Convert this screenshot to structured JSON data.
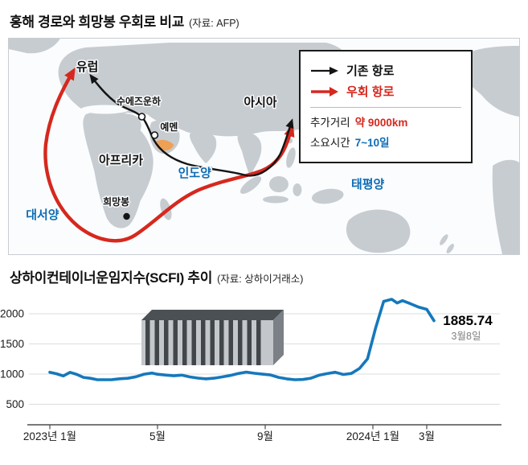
{
  "page": {
    "title": "홍해 경로와 희망봉 우회로 비교",
    "source": "(자료: AFP)"
  },
  "map": {
    "labels": {
      "europe": "유럽",
      "suez_canal": "수에즈운하",
      "asia": "아시아",
      "yemen": "예멘",
      "africa": "아프리카",
      "indian_ocean": "인도양",
      "pacific_ocean": "태평양",
      "atlantic_ocean": "대서양",
      "cape_of_good_hope": "희망봉"
    },
    "legend": {
      "existing_route_label": "기존 항로",
      "detour_route_label": "우회 항로",
      "extra_distance_label": "추가거리",
      "extra_distance_value": "약 9000km",
      "duration_label": "소요시간",
      "duration_value": "7~10일"
    },
    "colors": {
      "existing_route": "#141414",
      "detour_route": "#d6281e",
      "ocean_label": "#0c6cb5",
      "land": "#c7ccd1",
      "yemen_highlight": "#eda155"
    }
  },
  "chart": {
    "title": "상하이컨테이너운임지수(SCFI) 추이",
    "source": "(자료: 상하이거래소)",
    "end_label_value": "1885.74",
    "end_label_date": "3월8일"
  },
  "chart_data": {
    "type": "line",
    "title": "상하이컨테이너운임지수(SCFI) 추이",
    "xlabel": "",
    "ylabel": "",
    "ylim": [
      150,
      2450
    ],
    "grid": true,
    "legend_position": "none",
    "line_color": "#1578bc",
    "y_ticks": [
      500,
      1000,
      1500,
      2000
    ],
    "x_ticks": [
      {
        "m": 0,
        "label": "2023년 1월"
      },
      {
        "m": 4,
        "label": "5월"
      },
      {
        "m": 8,
        "label": "9월"
      },
      {
        "m": 12,
        "label": "2024년 1월"
      },
      {
        "m": 14,
        "label": "3월"
      }
    ],
    "series": [
      {
        "name": "SCFI",
        "x": [
          0,
          0.25,
          0.5,
          0.75,
          1,
          1.25,
          1.5,
          1.75,
          2,
          2.3,
          2.6,
          2.9,
          3.2,
          3.5,
          3.8,
          4,
          4.3,
          4.6,
          4.9,
          5.2,
          5.5,
          5.8,
          6.1,
          6.4,
          6.7,
          7,
          7.3,
          7.6,
          7.9,
          8.2,
          8.5,
          8.8,
          9.1,
          9.4,
          9.7,
          10,
          10.3,
          10.6,
          10.9,
          11.2,
          11.5,
          11.8,
          12.1,
          12.4,
          12.7,
          12.9,
          13.1,
          13.4,
          13.7,
          14,
          14.27
        ],
        "values": [
          1031,
          1006,
          969,
          1029,
          995,
          946,
          931,
          908,
          906,
          908,
          923,
          931,
          956,
          999,
          1018,
          998,
          984,
          972,
          983,
          953,
          934,
          921,
          932,
          954,
          978,
          1009,
          1033,
          1014,
          999,
          986,
          946,
          921,
          906,
          911,
          932,
          981,
          1008,
          1031,
          993,
          1011,
          1093,
          1254,
          1760,
          2206,
          2240,
          2179,
          2217,
          2166,
          2110,
          2074,
          1885.74
        ]
      }
    ],
    "last_point": {
      "date_label": "3월8일",
      "value": 1885.74
    }
  }
}
